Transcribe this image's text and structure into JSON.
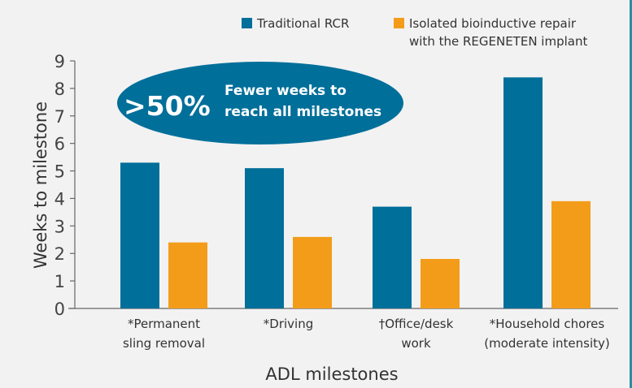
{
  "chart_data": {
    "type": "bar",
    "categories": [
      [
        "*Permanent",
        "sling removal"
      ],
      [
        "*Driving"
      ],
      [
        "†Office/desk",
        "work"
      ],
      [
        "*Household chores",
        "(moderate intensity)"
      ]
    ],
    "series": [
      {
        "name": "Traditional RCR",
        "color": "#006f9a",
        "values": [
          5.3,
          5.1,
          3.7,
          8.4
        ]
      },
      {
        "name": [
          "Isolated bioinductive repair",
          "with the REGENETEN implant"
        ],
        "color": "#f39c1a",
        "values": [
          2.4,
          2.6,
          1.8,
          3.9
        ]
      }
    ],
    "ylabel": "Weeks to milestone",
    "xlabel": "ADL milestones",
    "ylim": [
      0,
      9
    ],
    "yticks": [
      0,
      1,
      2,
      3,
      4,
      5,
      6,
      7,
      8,
      9
    ],
    "grid": false,
    "legend": "top-right",
    "annotation": {
      "big": ">50%",
      "lines": [
        "Fewer weeks to",
        "reach all milestones"
      ],
      "color": "#006f9a"
    }
  }
}
